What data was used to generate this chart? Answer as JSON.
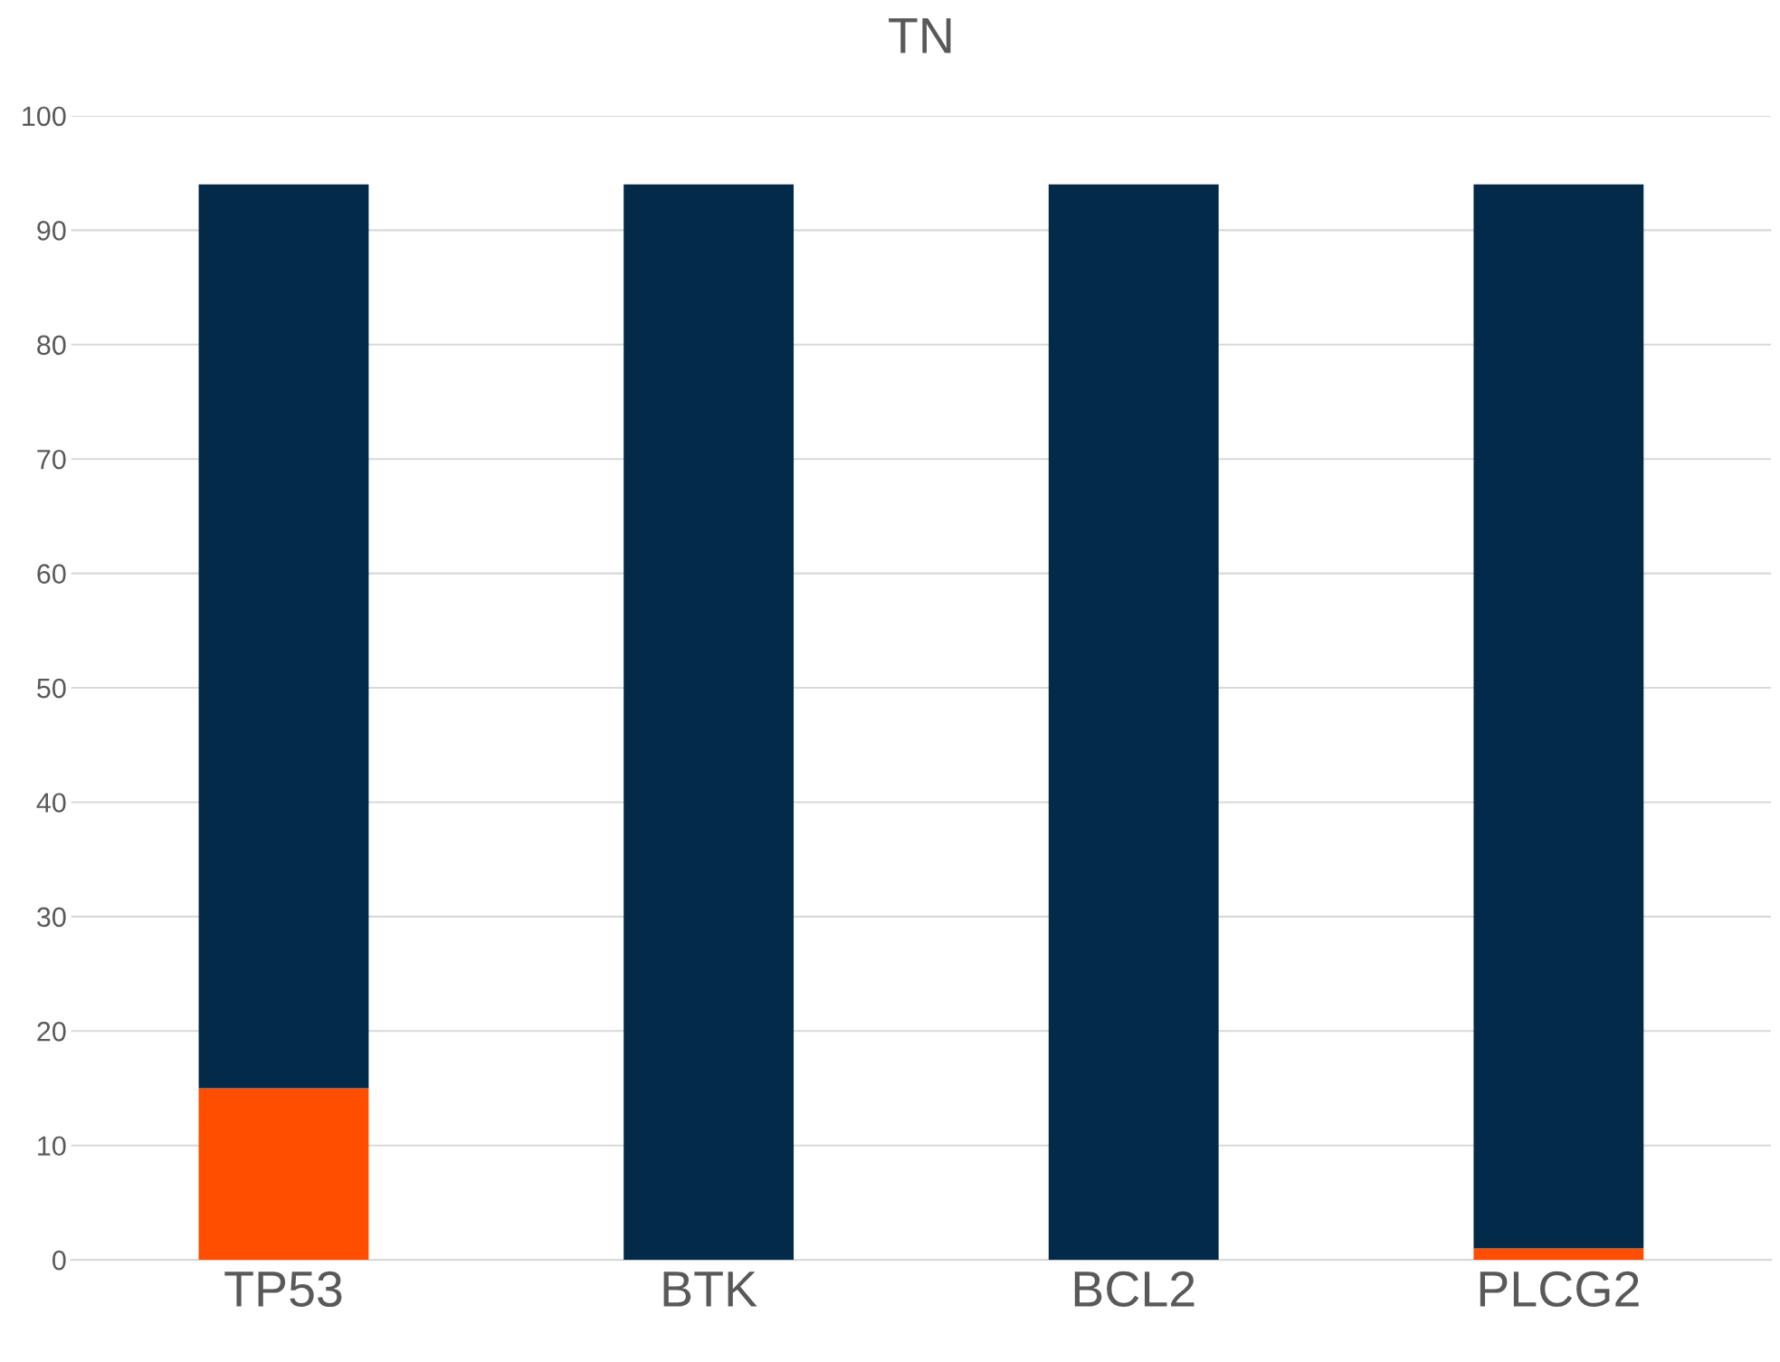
{
  "chart_data": {
    "type": "bar",
    "title": "TN",
    "categories": [
      "TP53",
      "BTK",
      "BCL2",
      "PLCG2"
    ],
    "stacked": true,
    "series": [
      {
        "color": "#ff4e00",
        "values": [
          15,
          0,
          0,
          1
        ]
      },
      {
        "color": "#042a4a",
        "values": [
          79,
          94,
          94,
          93
        ]
      }
    ],
    "ylim": [
      0,
      100
    ],
    "yticks": [
      0,
      10,
      20,
      30,
      40,
      50,
      60,
      70,
      80,
      90,
      100
    ],
    "grid": "y",
    "legend": false
  }
}
